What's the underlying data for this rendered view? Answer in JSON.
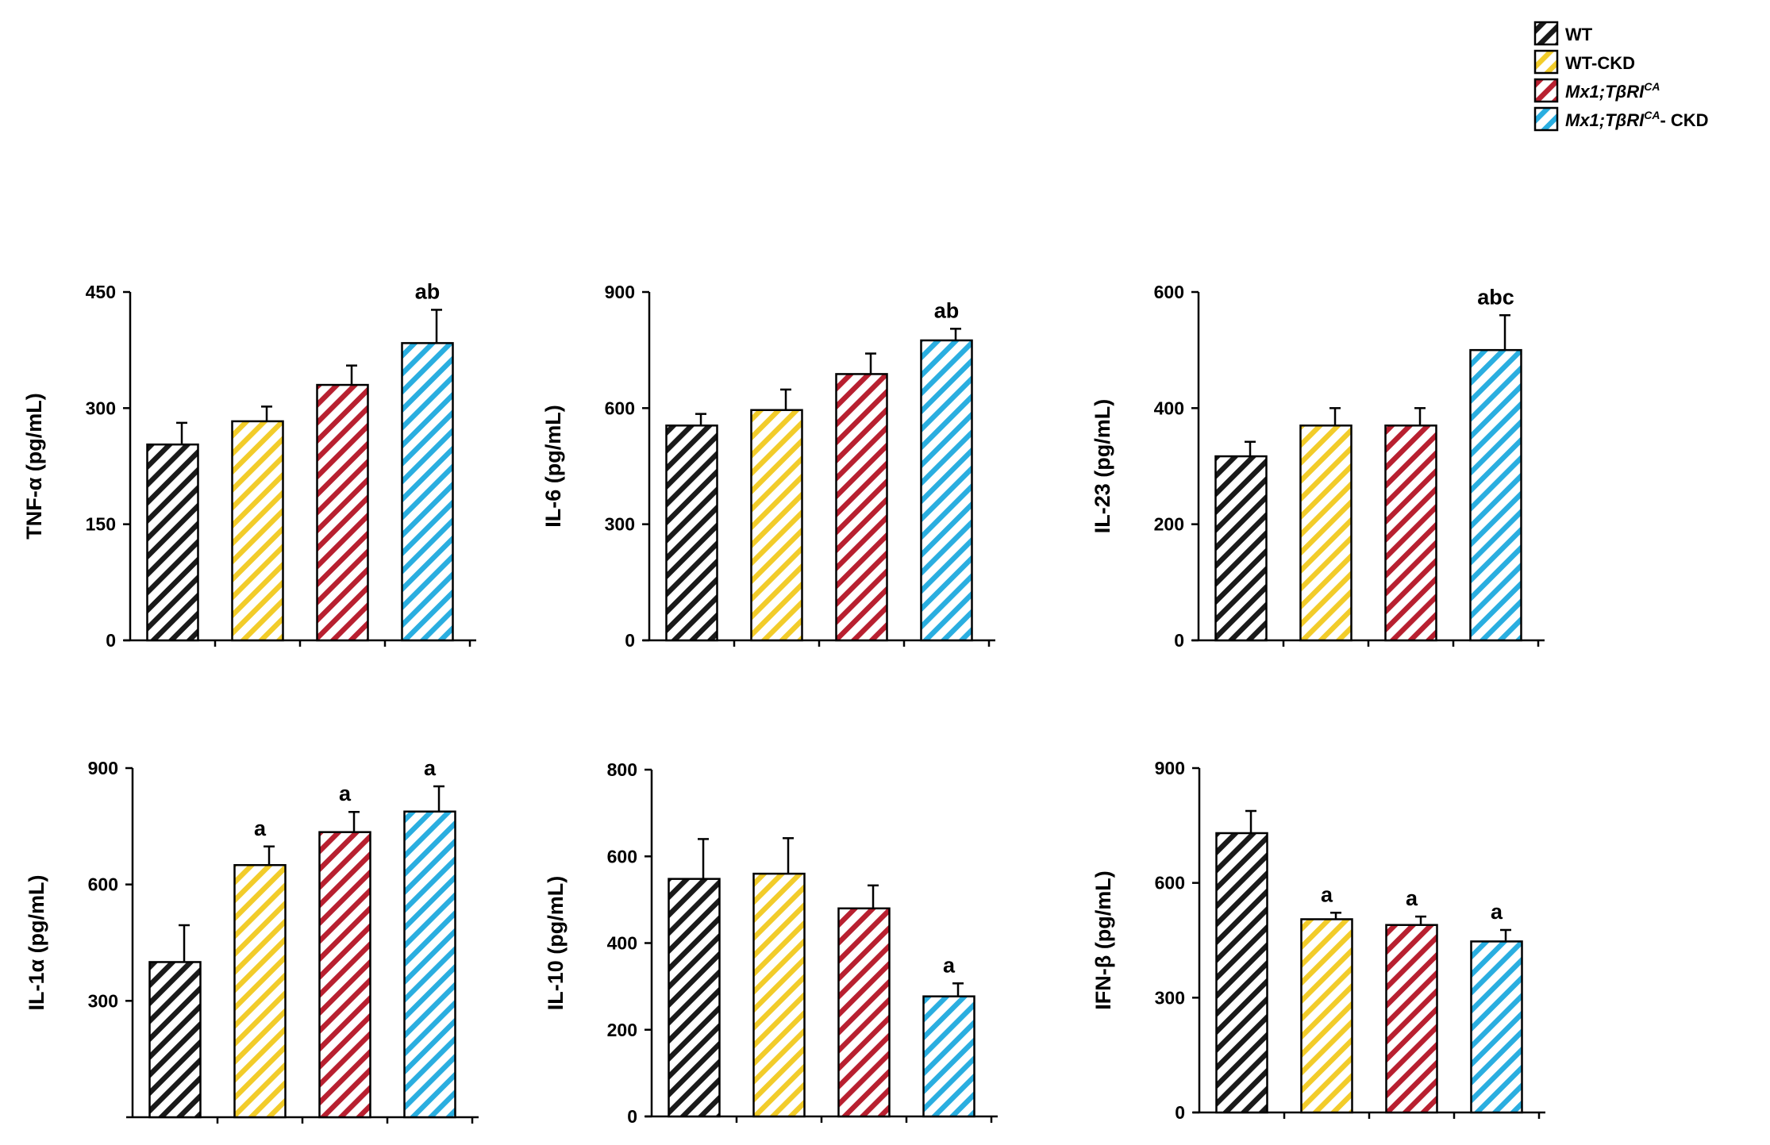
{
  "legend": {
    "entries": [
      {
        "key": "wt",
        "label": "WT",
        "superscript": "",
        "suffix": "",
        "italic": false,
        "color": "#1a1a1a"
      },
      {
        "key": "wt_ckd",
        "label": "WT-CKD",
        "superscript": "",
        "suffix": "",
        "italic": false,
        "color": "#f2cc2a"
      },
      {
        "key": "mx1",
        "label": "Mx1;TβRI",
        "superscript": "CA",
        "suffix": "",
        "italic": true,
        "color": "#b82030"
      },
      {
        "key": "mx1_ckd",
        "label": "Mx1;TβRI",
        "superscript": "CA",
        "suffix": "- CKD",
        "italic": true,
        "color": "#2aaee0"
      }
    ]
  },
  "chart_data": [
    {
      "type": "bar",
      "ylabel": "TNF-α (pg/mL)",
      "ylim": [
        0,
        450
      ],
      "yticks": [
        0,
        150,
        300,
        450
      ],
      "categories": [
        "WT",
        "WT-CKD",
        "Mx1;TβRICA",
        "Mx1;TβRICA- CKD"
      ],
      "values": [
        253,
        283,
        330,
        384
      ],
      "errors": [
        28,
        19,
        25,
        43
      ],
      "annotations": [
        "",
        "",
        "",
        "ab"
      ]
    },
    {
      "type": "bar",
      "ylabel": "IL-6 (pg/mL)",
      "ylim": [
        0,
        900
      ],
      "yticks": [
        0,
        300,
        600,
        900
      ],
      "categories": [
        "WT",
        "WT-CKD",
        "Mx1;TβRICA",
        "Mx1;TβRICA- CKD"
      ],
      "values": [
        555,
        595,
        688,
        775
      ],
      "errors": [
        30,
        53,
        53,
        30
      ],
      "annotations": [
        "",
        "",
        "",
        "ab"
      ]
    },
    {
      "type": "bar",
      "ylabel": "IL-23 (pg/mL)",
      "ylim": [
        0,
        600
      ],
      "yticks": [
        0,
        200,
        400,
        600
      ],
      "categories": [
        "WT",
        "WT-CKD",
        "Mx1;TβRICA",
        "Mx1;TβRICA- CKD"
      ],
      "values": [
        317,
        370,
        370,
        500
      ],
      "errors": [
        25,
        30,
        30,
        60
      ],
      "annotations": [
        "",
        "",
        "",
        "abc"
      ]
    },
    {
      "type": "bar",
      "ylabel": "IL-1α (pg/mL)",
      "ylim": [
        0,
        900
      ],
      "yticks": [
        300,
        600,
        900
      ],
      "categories": [
        "WT",
        "WT-CKD",
        "Mx1;TβRICA",
        "Mx1;TβRICA- CKD"
      ],
      "values": [
        400,
        650,
        735,
        788
      ],
      "errors": [
        95,
        48,
        52,
        65
      ],
      "annotations": [
        "",
        "a",
        "a",
        "a"
      ]
    },
    {
      "type": "bar",
      "ylabel": "IL-10 (pg/mL)",
      "ylim": [
        0,
        800
      ],
      "yticks": [
        0,
        200,
        400,
        600,
        800
      ],
      "categories": [
        "WT",
        "WT-CKD",
        "Mx1;TβRICA",
        "Mx1;TβRICA- CKD"
      ],
      "values": [
        548,
        560,
        480,
        277
      ],
      "errors": [
        92,
        82,
        53,
        30
      ],
      "annotations": [
        "",
        "",
        "",
        "a"
      ]
    },
    {
      "type": "bar",
      "ylabel": "IFN-β (pg/mL)",
      "ylim": [
        0,
        900
      ],
      "yticks": [
        0,
        300,
        600,
        900
      ],
      "categories": [
        "WT",
        "WT-CKD",
        "Mx1;TβRICA",
        "Mx1;TβRICA- CKD"
      ],
      "values": [
        730,
        505,
        490,
        447
      ],
      "errors": [
        58,
        17,
        22,
        30
      ],
      "annotations": [
        "",
        "a",
        "a",
        "a"
      ]
    }
  ]
}
